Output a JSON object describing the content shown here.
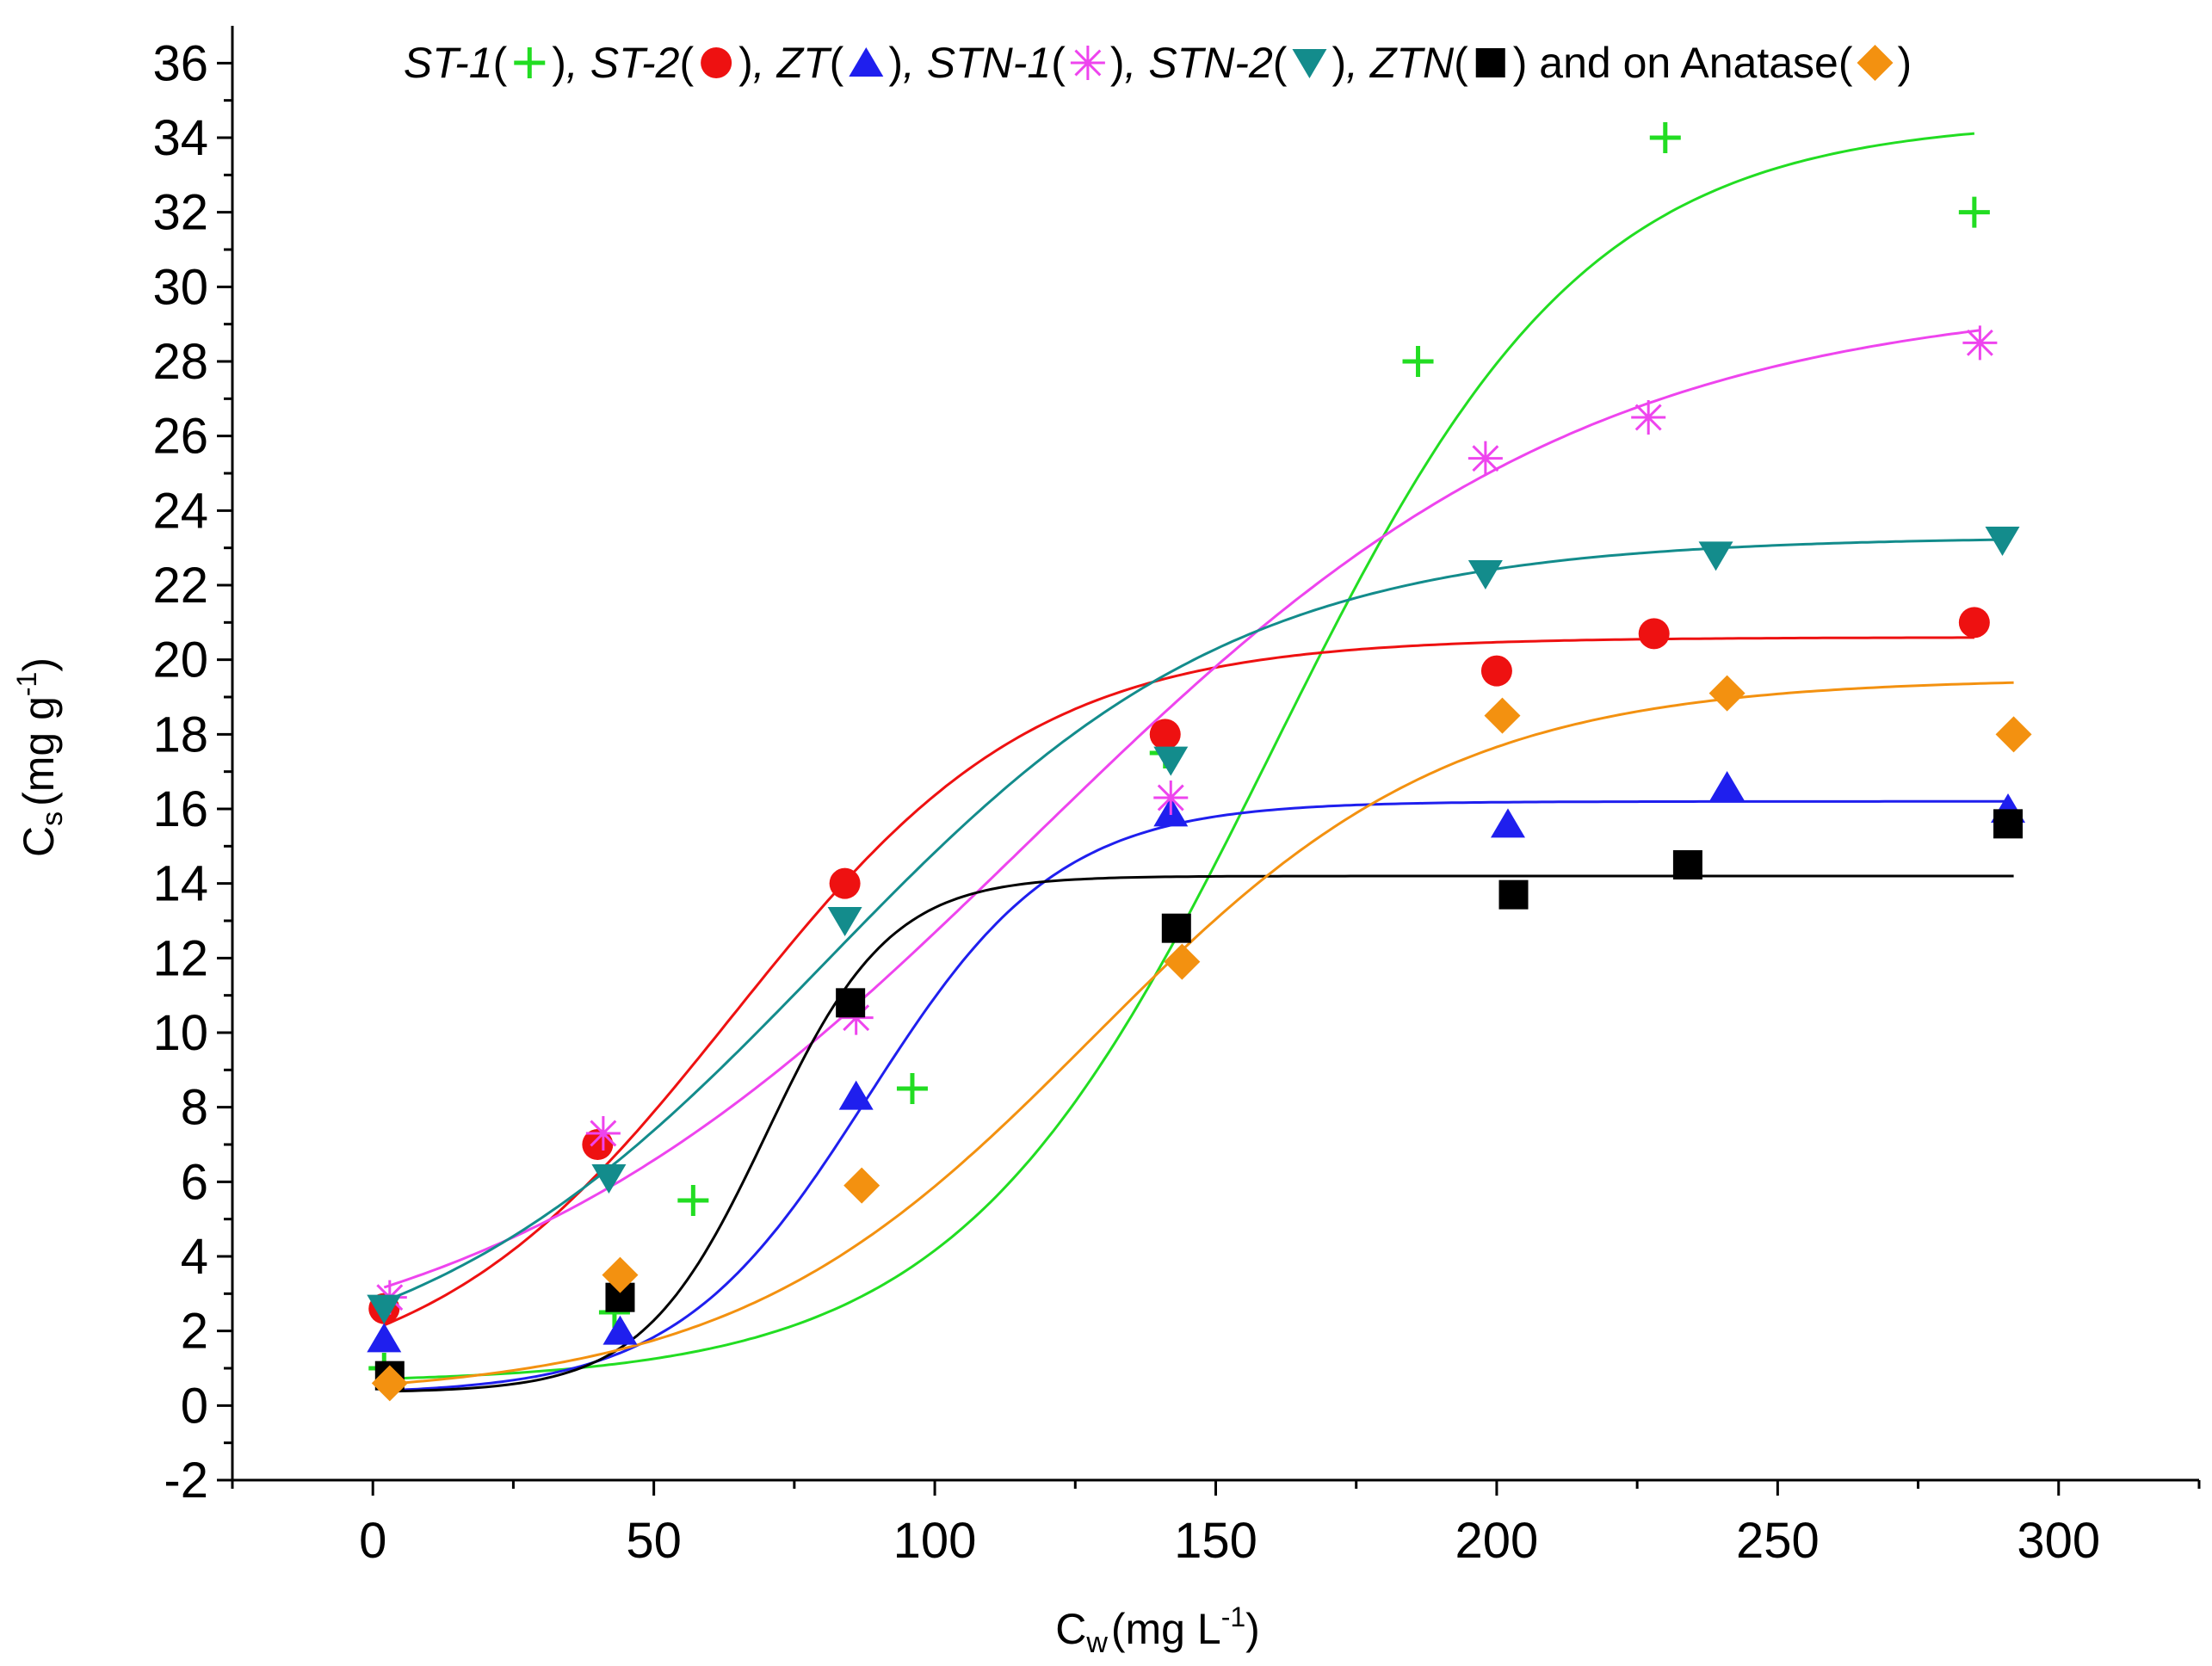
{
  "chart_data": {
    "type": "scatter",
    "title": "",
    "xlabel": "C",
    "xlabel_sub": "w",
    "xlabel_unit": "(mg L",
    "xlabel_sup": "-1",
    "xlabel_close": ")",
    "ylabel": "C",
    "ylabel_sub": "s",
    "ylabel_unit": "(mg g",
    "ylabel_sup": "-1",
    "ylabel_close": ")",
    "xlim": [
      -25,
      325
    ],
    "ylim": [
      -2,
      37
    ],
    "xticks": [
      0,
      50,
      100,
      150,
      200,
      250,
      300
    ],
    "yticks": [
      -2,
      0,
      2,
      4,
      6,
      8,
      10,
      12,
      14,
      16,
      18,
      20,
      22,
      24,
      26,
      28,
      30,
      32,
      34,
      36
    ],
    "legend": {
      "position": "top",
      "suffix": "and on Anatase"
    },
    "series": [
      {
        "name": "ST-1",
        "italic": true,
        "marker": "plus",
        "color": "#22dd22",
        "x": [
          2,
          43,
          57,
          96,
          141,
          186,
          230,
          285
        ],
        "y": [
          1.0,
          2.5,
          5.5,
          8.5,
          17.5,
          28.0,
          34.0,
          32.0
        ],
        "fit": {
          "A1": 0.6,
          "A2": 34.5,
          "x0": 160,
          "dx": 28,
          "xmax": 285
        }
      },
      {
        "name": "ST-2",
        "italic": true,
        "marker": "circle",
        "color": "#ee1111",
        "x": [
          2,
          40,
          84,
          141,
          200,
          228,
          285
        ],
        "y": [
          2.6,
          7.0,
          14.0,
          18.0,
          19.7,
          20.7,
          21.0
        ],
        "fit": {
          "A1": 0.3,
          "A2": 20.6,
          "x0": 64,
          "dx": 27,
          "xmax": 285
        }
      },
      {
        "name": "ZT",
        "italic": true,
        "marker": "triangle-up",
        "color": "#1f1fee",
        "x": [
          2,
          44,
          86,
          142,
          202,
          241,
          291
        ],
        "y": [
          1.8,
          2.0,
          8.3,
          15.9,
          15.6,
          16.6,
          16.0
        ],
        "fit": {
          "A1": 0.3,
          "A2": 16.2,
          "x0": 88,
          "dx": 17,
          "xmax": 291
        }
      },
      {
        "name": "STN-1",
        "italic": true,
        "marker": "asterisk",
        "color": "#ee44ee",
        "x": [
          3,
          41,
          86,
          142,
          198,
          227,
          286
        ],
        "y": [
          2.9,
          7.3,
          10.4,
          16.3,
          25.4,
          26.5,
          28.5
        ],
        "fit": {
          "A1": 0.5,
          "A2": 29.8,
          "x0": 117,
          "dx": 50,
          "xmax": 286
        }
      },
      {
        "name": "STN-2",
        "italic": true,
        "marker": "triangle-down",
        "color": "#138c8c",
        "x": [
          2,
          42,
          84,
          142,
          198,
          239,
          290
        ],
        "y": [
          2.6,
          6.1,
          13.0,
          17.3,
          22.3,
          22.8,
          23.2
        ],
        "fit": {
          "A1": 0.3,
          "A2": 23.3,
          "x0": 80,
          "dx": 37,
          "xmax": 290
        }
      },
      {
        "name": "ZTN",
        "italic": true,
        "marker": "square",
        "color": "#000000",
        "x": [
          3,
          44,
          85,
          143,
          203,
          234,
          291
        ],
        "y": [
          0.8,
          2.9,
          10.8,
          12.8,
          13.7,
          14.5,
          15.6
        ],
        "fit": {
          "A1": 0.35,
          "A2": 14.2,
          "x0": 70,
          "dx": 11,
          "xmax": 292
        }
      },
      {
        "name": "Anatase",
        "italic": false,
        "marker": "diamond",
        "color": "#f39110",
        "x": [
          3,
          44,
          87,
          144,
          201,
          241,
          292
        ],
        "y": [
          0.6,
          3.5,
          5.9,
          11.9,
          18.5,
          19.1,
          18.0
        ],
        "fit": {
          "A1": 0.2,
          "A2": 19.5,
          "x0": 128,
          "dx": 32,
          "xmax": 292
        }
      }
    ]
  }
}
